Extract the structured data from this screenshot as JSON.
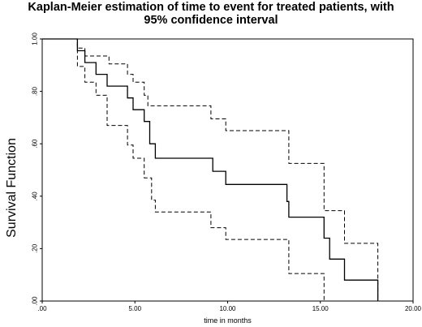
{
  "chart_data": {
    "type": "line",
    "title_line1": "Kaplan-Meier estimation of time to event for treated patients, with",
    "title_line2": "95% confidence interval",
    "xlabel": "time in months",
    "ylabel": "Survival Function",
    "xlim": [
      0,
      20
    ],
    "ylim": [
      0,
      1
    ],
    "x_ticks": [
      {
        "value": 0,
        "label": ".00"
      },
      {
        "value": 5,
        "label": "5.00"
      },
      {
        "value": 10,
        "label": "10.00"
      },
      {
        "value": 15,
        "label": "15.00"
      },
      {
        "value": 20,
        "label": "20.00"
      }
    ],
    "y_ticks": [
      {
        "value": 0,
        "label": ".00"
      },
      {
        "value": 0.2,
        "label": ".20"
      },
      {
        "value": 0.4,
        "label": ".40"
      },
      {
        "value": 0.6,
        "label": ".60"
      },
      {
        "value": 0.8,
        "label": ".80"
      },
      {
        "value": 1.0,
        "label": "1.00"
      }
    ],
    "grid": false,
    "line_color": "#000000",
    "series": [
      {
        "style": "solid",
        "x": [
          0,
          1.9,
          1.9,
          2.3,
          2.3,
          2.9,
          2.9,
          3.5,
          3.5,
          4.6,
          4.6,
          4.9,
          4.9,
          5.5,
          5.5,
          5.8,
          5.8,
          6.1,
          6.1,
          9.2,
          9.2,
          9.9,
          9.9,
          13.2,
          13.2,
          13.3,
          13.3,
          15.2,
          15.2,
          15.5,
          15.5,
          16.3,
          16.3,
          18.1,
          18.1
        ],
        "y": [
          1.0,
          1.0,
          0.955,
          0.955,
          0.91,
          0.91,
          0.865,
          0.865,
          0.82,
          0.82,
          0.775,
          0.775,
          0.73,
          0.73,
          0.685,
          0.685,
          0.6,
          0.6,
          0.545,
          0.545,
          0.495,
          0.495,
          0.445,
          0.445,
          0.38,
          0.38,
          0.32,
          0.32,
          0.24,
          0.24,
          0.16,
          0.16,
          0.08,
          0.08,
          0.0
        ]
      },
      {
        "style": "dashed",
        "x": [
          0,
          1.9,
          1.9,
          2.3,
          2.3,
          3.6,
          3.6,
          4.6,
          4.6,
          4.9,
          4.9,
          5.5,
          5.5,
          5.7,
          5.7,
          5.9,
          5.9,
          6.1,
          6.1,
          9.1,
          9.1,
          9.9,
          9.9,
          13.3,
          13.3,
          15.2,
          15.2,
          16.3,
          16.3,
          18.1,
          18.1
        ],
        "y": [
          1.0,
          1.0,
          0.965,
          0.965,
          0.935,
          0.935,
          0.905,
          0.905,
          0.865,
          0.865,
          0.835,
          0.835,
          0.785,
          0.785,
          0.745,
          0.745,
          0.745,
          0.745,
          0.745,
          0.745,
          0.695,
          0.695,
          0.65,
          0.65,
          0.525,
          0.525,
          0.345,
          0.345,
          0.22,
          0.22,
          0.0
        ]
      },
      {
        "style": "dashed",
        "x": [
          0,
          1.9,
          1.9,
          2.3,
          2.3,
          2.9,
          2.9,
          3.5,
          3.5,
          4.6,
          4.6,
          4.9,
          4.9,
          5.5,
          5.5,
          5.9,
          5.9,
          6.1,
          6.1,
          9.1,
          9.1,
          9.9,
          9.9,
          13.3,
          13.3,
          15.2,
          15.2,
          15.4
        ],
        "y": [
          1.0,
          1.0,
          0.895,
          0.895,
          0.835,
          0.835,
          0.785,
          0.785,
          0.67,
          0.67,
          0.595,
          0.595,
          0.545,
          0.545,
          0.47,
          0.47,
          0.385,
          0.385,
          0.34,
          0.34,
          0.28,
          0.28,
          0.235,
          0.235,
          0.105,
          0.105,
          0.0,
          0.0
        ]
      }
    ]
  }
}
